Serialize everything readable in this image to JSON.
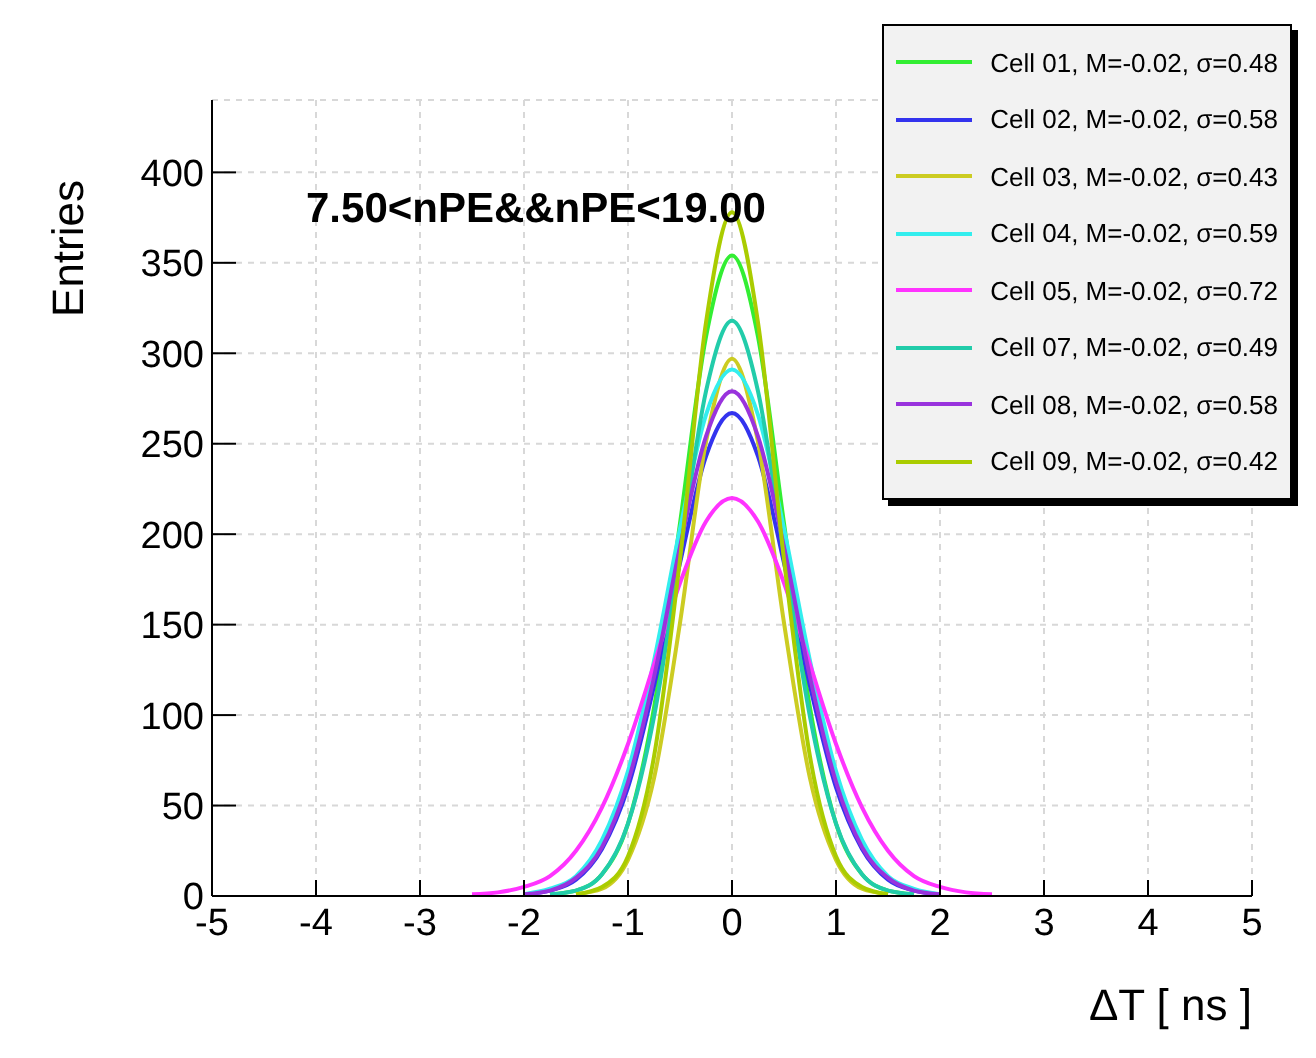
{
  "chart_data": {
    "type": "line",
    "xlabel": "ΔT [ ns ]",
    "ylabel": "Entries",
    "annotations": [
      "7.50<nPE&&nPE<19.00"
    ],
    "xlim": [
      -5,
      5
    ],
    "xticks": [
      -5,
      -4,
      -3,
      -2,
      -1,
      0,
      1,
      2,
      3,
      4,
      5
    ],
    "ylim": [
      0,
      440
    ],
    "yticks": [
      0,
      50,
      100,
      150,
      200,
      250,
      300,
      350,
      400
    ],
    "grid": true,
    "legend": "top right",
    "marker": "none",
    "line_style": "solid",
    "series": [
      {
        "name": "Cell 01, M=-0.02, σ=0.48",
        "color": "#33ee33",
        "x": [
          -1.75,
          -1.5,
          -1.25,
          -1,
          -0.75,
          -0.5,
          -0.25,
          0,
          0.25,
          0.5,
          0.75,
          1,
          1.25,
          1.5,
          1.75
        ],
        "values": [
          1,
          3,
          12,
          40,
          104,
          206,
          309,
          354,
          309,
          206,
          104,
          40,
          12,
          3,
          1
        ]
      },
      {
        "name": "Cell 02, M=-0.02, σ=0.58",
        "color": "#3333ee",
        "x": [
          -2,
          -1.75,
          -1.5,
          -1.25,
          -1,
          -0.75,
          -0.5,
          -0.25,
          0,
          0.25,
          0.5,
          0.75,
          1,
          1.25,
          1.5,
          1.75,
          2
        ],
        "values": [
          1,
          3,
          9,
          26,
          60,
          116,
          184,
          243,
          267,
          243,
          184,
          116,
          60,
          26,
          9,
          3,
          1
        ]
      },
      {
        "name": "Cell 03, M=-0.02, σ=0.43",
        "color": "#cccc22",
        "x": [
          -1.5,
          -1.25,
          -1,
          -0.75,
          -0.5,
          -0.25,
          0,
          0.25,
          0.5,
          0.75,
          1,
          1.25,
          1.5
        ],
        "values": [
          1,
          4,
          20,
          65,
          151,
          251,
          297,
          251,
          151,
          65,
          20,
          4,
          1
        ]
      },
      {
        "name": "Cell 04, M=-0.02, σ=0.59",
        "color": "#33eeee",
        "x": [
          -2,
          -1.75,
          -1.5,
          -1.25,
          -1,
          -0.75,
          -0.5,
          -0.25,
          0,
          0.25,
          0.5,
          0.75,
          1,
          1.25,
          1.5,
          1.75,
          2
        ],
        "values": [
          1,
          4,
          11,
          31,
          69,
          130,
          203,
          266,
          291,
          266,
          203,
          130,
          69,
          31,
          11,
          4,
          1
        ]
      },
      {
        "name": "Cell 05, M=-0.02, σ=0.72",
        "color": "#ff33ff",
        "x": [
          -2.5,
          -2.25,
          -2,
          -1.75,
          -1.5,
          -1.25,
          -1,
          -0.75,
          -0.5,
          -0.25,
          0,
          0.25,
          0.5,
          0.75,
          1,
          1.25,
          1.5,
          1.75,
          2,
          2.25,
          2.5
        ],
        "values": [
          1,
          2,
          5,
          11,
          25,
          49,
          84,
          128,
          173,
          207,
          220,
          207,
          173,
          128,
          84,
          49,
          25,
          11,
          5,
          2,
          1
        ]
      },
      {
        "name": "Cell 07, M=-0.02, σ=0.49",
        "color": "#22ccaa",
        "x": [
          -1.75,
          -1.5,
          -1.25,
          -1,
          -0.75,
          -0.5,
          -0.25,
          0,
          0.25,
          0.5,
          0.75,
          1,
          1.25,
          1.5,
          1.75
        ],
        "values": [
          1,
          3,
          12,
          40,
          99,
          189,
          279,
          318,
          279,
          189,
          99,
          40,
          12,
          3,
          1
        ]
      },
      {
        "name": "Cell 08, M=-0.02, σ=0.58",
        "color": "#9933dd",
        "x": [
          -2,
          -1.75,
          -1.5,
          -1.25,
          -1,
          -0.75,
          -0.5,
          -0.25,
          0,
          0.25,
          0.5,
          0.75,
          1,
          1.25,
          1.5,
          1.75,
          2
        ],
        "values": [
          1,
          3,
          10,
          27,
          63,
          121,
          193,
          254,
          279,
          254,
          193,
          121,
          63,
          27,
          10,
          3,
          1
        ]
      },
      {
        "name": "Cell 09, M=-0.02, σ=0.42",
        "color": "#aacc00",
        "x": [
          -1.5,
          -1.25,
          -1,
          -0.75,
          -0.5,
          -0.25,
          0,
          0.25,
          0.5,
          0.75,
          1,
          1.25,
          1.5
        ],
        "values": [
          1,
          5,
          22,
          77,
          186,
          317,
          378,
          317,
          186,
          77,
          22,
          5,
          1
        ]
      }
    ]
  }
}
